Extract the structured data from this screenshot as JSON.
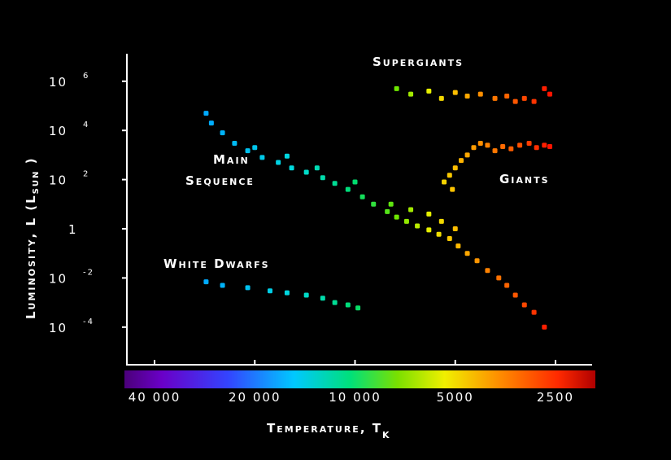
{
  "chart_data": {
    "type": "scatter",
    "title": "",
    "xlabel": "Temperature, T",
    "xlabel_sub": "K",
    "ylabel": "Luminosity, L (L",
    "ylabel_sub": "SUN",
    "ylabel_close": " )",
    "x_scale": "log (reversed)",
    "y_scale": "log",
    "xlim": [
      50000,
      2200
    ],
    "ylim_log10": [
      -5.5,
      7
    ],
    "x_ticks": [
      {
        "value": 40000,
        "label": "40 000"
      },
      {
        "value": 20000,
        "label": "20 000"
      },
      {
        "value": 10000,
        "label": "10 000"
      },
      {
        "value": 5000,
        "label": "5000"
      },
      {
        "value": 2500,
        "label": "2500"
      }
    ],
    "y_ticks": [
      {
        "value": 1000000,
        "base": "10",
        "exp": "6"
      },
      {
        "value": 10000,
        "base": "10",
        "exp": "4"
      },
      {
        "value": 100,
        "base": "10",
        "exp": "2"
      },
      {
        "value": 1,
        "base": "1",
        "exp": ""
      },
      {
        "value": 0.01,
        "base": "10",
        "exp": "-2"
      },
      {
        "value": 0.0001,
        "base": "10",
        "exp": "-4"
      }
    ],
    "colorbar": {
      "from_color": "#6a00c8",
      "to_color": "#ff0000",
      "low_temp_end": "right"
    },
    "region_labels": {
      "supergiants": "Supergiants",
      "giants": "Giants",
      "main_sequence_line1": "Main",
      "main_sequence_line2": "Sequence",
      "white_dwarfs": "White Dwarfs"
    },
    "series": [
      {
        "name": "Main Sequence",
        "points": [
          [
            28000,
            50000
          ],
          [
            27000,
            20000
          ],
          [
            25000,
            8000
          ],
          [
            23000,
            3000
          ],
          [
            21000,
            1500
          ],
          [
            19000,
            800
          ],
          [
            17000,
            500
          ],
          [
            15500,
            300
          ],
          [
            14000,
            200
          ],
          [
            12500,
            120
          ],
          [
            11500,
            70
          ],
          [
            10500,
            40
          ],
          [
            9500,
            20
          ],
          [
            8800,
            10
          ],
          [
            8000,
            5
          ],
          [
            7500,
            3
          ],
          [
            7000,
            2
          ],
          [
            6500,
            1.3
          ],
          [
            6000,
            0.9
          ],
          [
            5600,
            0.6
          ],
          [
            5200,
            0.4
          ],
          [
            4900,
            0.2
          ],
          [
            4600,
            0.1
          ],
          [
            4300,
            0.05
          ],
          [
            4000,
            0.02
          ],
          [
            3700,
            0.01
          ],
          [
            3500,
            0.005
          ],
          [
            3300,
            0.002
          ],
          [
            3100,
            0.0008
          ],
          [
            2900,
            0.0004
          ],
          [
            2700,
            0.0001
          ],
          [
            20000,
            2000
          ],
          [
            16000,
            900
          ],
          [
            13000,
            300
          ],
          [
            10000,
            80
          ],
          [
            7800,
            10
          ],
          [
            6800,
            6
          ],
          [
            6000,
            4
          ],
          [
            5500,
            2
          ],
          [
            5000,
            1
          ]
        ]
      },
      {
        "name": "Supergiants",
        "points": [
          [
            7500,
            500000
          ],
          [
            6800,
            300000
          ],
          [
            6000,
            400000
          ],
          [
            5500,
            200000
          ],
          [
            5000,
            350000
          ],
          [
            4600,
            250000
          ],
          [
            4200,
            300000
          ],
          [
            3800,
            200000
          ],
          [
            3500,
            250000
          ],
          [
            3300,
            150000
          ],
          [
            3100,
            200000
          ],
          [
            2900,
            150000
          ],
          [
            2700,
            500000
          ],
          [
            2600,
            300000
          ]
        ]
      },
      {
        "name": "Giants",
        "points": [
          [
            5400,
            80
          ],
          [
            5200,
            150
          ],
          [
            5100,
            40
          ],
          [
            5000,
            300
          ],
          [
            4800,
            600
          ],
          [
            4600,
            1000
          ],
          [
            4400,
            2000
          ],
          [
            4200,
            3000
          ],
          [
            4000,
            2500
          ],
          [
            3800,
            1500
          ],
          [
            3600,
            2200
          ],
          [
            3400,
            1800
          ],
          [
            3200,
            2500
          ],
          [
            3000,
            3000
          ],
          [
            2850,
            2000
          ],
          [
            2700,
            2500
          ],
          [
            2600,
            2200
          ]
        ]
      },
      {
        "name": "White Dwarfs",
        "points": [
          [
            28000,
            0.007
          ],
          [
            25000,
            0.005
          ],
          [
            21000,
            0.004
          ],
          [
            18000,
            0.003
          ],
          [
            16000,
            0.0025
          ],
          [
            14000,
            0.002
          ],
          [
            12500,
            0.0015
          ],
          [
            11500,
            0.001
          ],
          [
            10500,
            0.0008
          ],
          [
            9800,
            0.0006
          ]
        ]
      }
    ],
    "grid": false,
    "legend": "none"
  }
}
